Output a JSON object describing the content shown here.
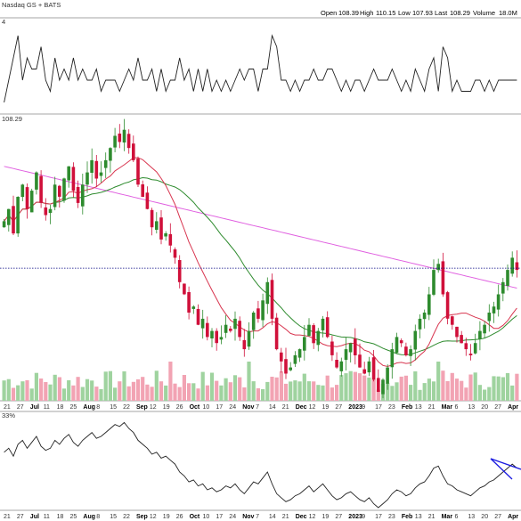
{
  "header": {
    "exchange_text": "Nasdaq GS + BATS",
    "open_label": "Open",
    "open_value": "108.39",
    "high_label": "High",
    "high_value": "110.15",
    "low_label": "Low",
    "low_value": "107.93",
    "last_label": "Last",
    "last_value": "108.29",
    "volume_label": "Volume",
    "volume_value": "18.0M"
  },
  "panel_labels": {
    "top_indicator": "4",
    "price": "108.29",
    "bottom_indicator": "33%"
  },
  "colors": {
    "up_candle": "#2e8b2e",
    "down_candle": "#d0103a",
    "ma_short": "#d8354f",
    "ma_mid": "#2e8b2e",
    "ma_long": "#e060e0",
    "reference_line": "#000080",
    "volume_up": "#9fd39f",
    "volume_down": "#f2a3b3",
    "trendline": "#1a1ae0"
  },
  "chart_data": {
    "type": "candlestick",
    "x_ticks": [
      {
        "label": "21",
        "bold": false
      },
      {
        "label": "27",
        "bold": false
      },
      {
        "label": "Jul",
        "bold": true
      },
      {
        "label": "11",
        "bold": false
      },
      {
        "label": "18",
        "bold": false
      },
      {
        "label": "25",
        "bold": false
      },
      {
        "label": "Aug",
        "bold": true
      },
      {
        "label": "8",
        "bold": false
      },
      {
        "label": "15",
        "bold": false
      },
      {
        "label": "22",
        "bold": false
      },
      {
        "label": "Sep",
        "bold": true
      },
      {
        "label": "12",
        "bold": false
      },
      {
        "label": "19",
        "bold": false
      },
      {
        "label": "26",
        "bold": false
      },
      {
        "label": "Oct",
        "bold": true
      },
      {
        "label": "10",
        "bold": false
      },
      {
        "label": "17",
        "bold": false
      },
      {
        "label": "24",
        "bold": false
      },
      {
        "label": "Nov",
        "bold": true
      },
      {
        "label": "7",
        "bold": false
      },
      {
        "label": "14",
        "bold": false
      },
      {
        "label": "21",
        "bold": false
      },
      {
        "label": "Dec",
        "bold": true
      },
      {
        "label": "12",
        "bold": false
      },
      {
        "label": "19",
        "bold": false
      },
      {
        "label": "27",
        "bold": false
      },
      {
        "label": "2023",
        "bold": true
      },
      {
        "label": "9",
        "bold": false
      },
      {
        "label": "17",
        "bold": false
      },
      {
        "label": "23",
        "bold": false
      },
      {
        "label": "Feb",
        "bold": true
      },
      {
        "label": "13",
        "bold": false
      },
      {
        "label": "21",
        "bold": false
      },
      {
        "label": "Mar",
        "bold": true
      },
      {
        "label": "6",
        "bold": false
      },
      {
        "label": "13",
        "bold": false
      },
      {
        "label": "20",
        "bold": false
      },
      {
        "label": "27",
        "bold": false
      },
      {
        "label": "Apr",
        "bold": true
      }
    ],
    "price_series": [
      116,
      118,
      114,
      120,
      122,
      118,
      121,
      124,
      119,
      117,
      118,
      122,
      120,
      123,
      125,
      121,
      119,
      122,
      124,
      126,
      123,
      124,
      126,
      128,
      130,
      129,
      131,
      128,
      126,
      122,
      120,
      118,
      115,
      116,
      113,
      114,
      112,
      110,
      106,
      104,
      101,
      102,
      99,
      100,
      97,
      98,
      96,
      97,
      99,
      98,
      100,
      97,
      95,
      98,
      101,
      100,
      103,
      106,
      100,
      95,
      93,
      91,
      92,
      94,
      95,
      97,
      99,
      96,
      98,
      100,
      97,
      94,
      92,
      93,
      95,
      96,
      94,
      92,
      91,
      93,
      90,
      88,
      90,
      92,
      95,
      97,
      96,
      94,
      95,
      98,
      100,
      101,
      104,
      108,
      109,
      104,
      100,
      99,
      97,
      96,
      95,
      94,
      96,
      98,
      99,
      101,
      102,
      104,
      106,
      108,
      110,
      108
    ],
    "reference_level": 108.29,
    "ylim": [
      88,
      133
    ]
  }
}
